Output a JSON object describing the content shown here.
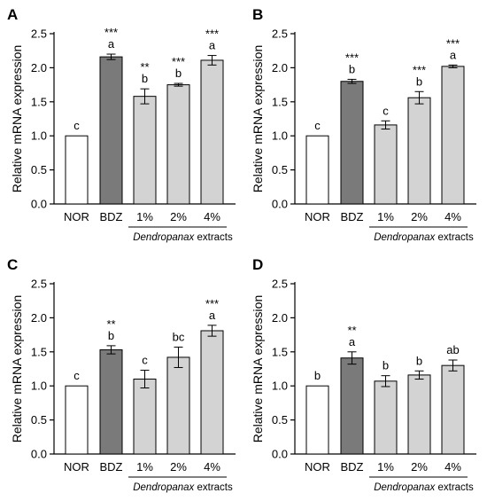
{
  "chart_data": [
    {
      "type": "bar",
      "panel": "A",
      "ylabel": "Relative mRNA expression",
      "ylim": [
        0,
        2.5
      ],
      "yticks": [
        "0.0",
        "0.5",
        "1.0",
        "1.5",
        "2.0",
        "2.5"
      ],
      "categories": [
        "NOR",
        "BDZ",
        "1%",
        "2%",
        "4%"
      ],
      "values": [
        1.0,
        2.16,
        1.58,
        1.75,
        2.11
      ],
      "errors": [
        0,
        0.04,
        0.11,
        0.02,
        0.07
      ],
      "letters": [
        "c",
        "a",
        "b",
        "b",
        "a"
      ],
      "significance": [
        "",
        "***",
        "**",
        "***",
        "***"
      ],
      "group_label_italic": "Dendropanax",
      "group_label_rest": " extracts"
    },
    {
      "type": "bar",
      "panel": "B",
      "ylabel": "Relative mRNA expression",
      "ylim": [
        0,
        2.5
      ],
      "yticks": [
        "0.0",
        "0.5",
        "1.0",
        "1.5",
        "2.0",
        "2.5"
      ],
      "categories": [
        "NOR",
        "BDZ",
        "1%",
        "2%",
        "4%"
      ],
      "values": [
        1.0,
        1.8,
        1.16,
        1.56,
        2.02
      ],
      "errors": [
        0,
        0.03,
        0.06,
        0.09,
        0.02
      ],
      "letters": [
        "c",
        "b",
        "c",
        "b",
        "a"
      ],
      "significance": [
        "",
        "***",
        "",
        "***",
        "***"
      ],
      "group_label_italic": "Dendropanax",
      "group_label_rest": " extracts"
    },
    {
      "type": "bar",
      "panel": "C",
      "ylabel": "Relative mRNA expression",
      "ylim": [
        0,
        2.5
      ],
      "yticks": [
        "0.0",
        "0.5",
        "1.0",
        "1.5",
        "2.0",
        "2.5"
      ],
      "categories": [
        "NOR",
        "BDZ",
        "1%",
        "2%",
        "4%"
      ],
      "values": [
        1.0,
        1.53,
        1.1,
        1.42,
        1.81
      ],
      "errors": [
        0,
        0.06,
        0.13,
        0.15,
        0.08
      ],
      "letters": [
        "c",
        "b",
        "c",
        "bc",
        "a"
      ],
      "significance": [
        "",
        "**",
        "",
        "",
        "***"
      ],
      "group_label_italic": "Dendropanax",
      "group_label_rest": " extracts"
    },
    {
      "type": "bar",
      "panel": "D",
      "ylabel": "Relative mRNA expression",
      "ylim": [
        0,
        2.5
      ],
      "yticks": [
        "0.0",
        "0.5",
        "1.0",
        "1.5",
        "2.0",
        "2.5"
      ],
      "categories": [
        "NOR",
        "BDZ",
        "1%",
        "2%",
        "4%"
      ],
      "values": [
        1.0,
        1.41,
        1.07,
        1.16,
        1.3
      ],
      "errors": [
        0,
        0.09,
        0.08,
        0.06,
        0.08
      ],
      "letters": [
        "b",
        "a",
        "b",
        "b",
        "ab"
      ],
      "significance": [
        "",
        "**",
        "",
        "",
        ""
      ],
      "group_label_italic": "Dendropanax",
      "group_label_rest": " extracts"
    }
  ],
  "colors": {
    "nor": "#ffffff",
    "bdz": "#7a7a7a",
    "extract": "#d3d3d3",
    "stroke": "#000000"
  }
}
